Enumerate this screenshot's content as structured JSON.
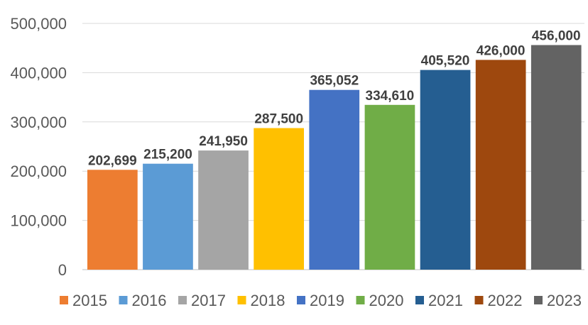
{
  "chart_data": {
    "type": "bar",
    "title": "",
    "xlabel": "",
    "ylabel": "",
    "ylim": [
      0,
      500000
    ],
    "yticks": [
      0,
      100000,
      200000,
      300000,
      400000,
      500000
    ],
    "ytick_labels": [
      "0",
      "100,000",
      "200,000",
      "300,000",
      "400,000",
      "500,000"
    ],
    "grid": true,
    "legend_position": "bottom",
    "categories": [
      "2015",
      "2016",
      "2017",
      "2018",
      "2019",
      "2020",
      "2021",
      "2022",
      "2023"
    ],
    "values": [
      202699,
      215200,
      241950,
      287500,
      365052,
      334610,
      405520,
      426000,
      456000
    ],
    "value_labels": [
      "202,699",
      "215,200",
      "241,950",
      "287,500",
      "365,052",
      "334,610",
      "405,520",
      "426,000",
      "456,000"
    ],
    "colors": [
      "#ED7D31",
      "#5B9BD5",
      "#A5A5A5",
      "#FFC000",
      "#4472C4",
      "#70AD47",
      "#255E91",
      "#9E480E",
      "#636363"
    ]
  }
}
